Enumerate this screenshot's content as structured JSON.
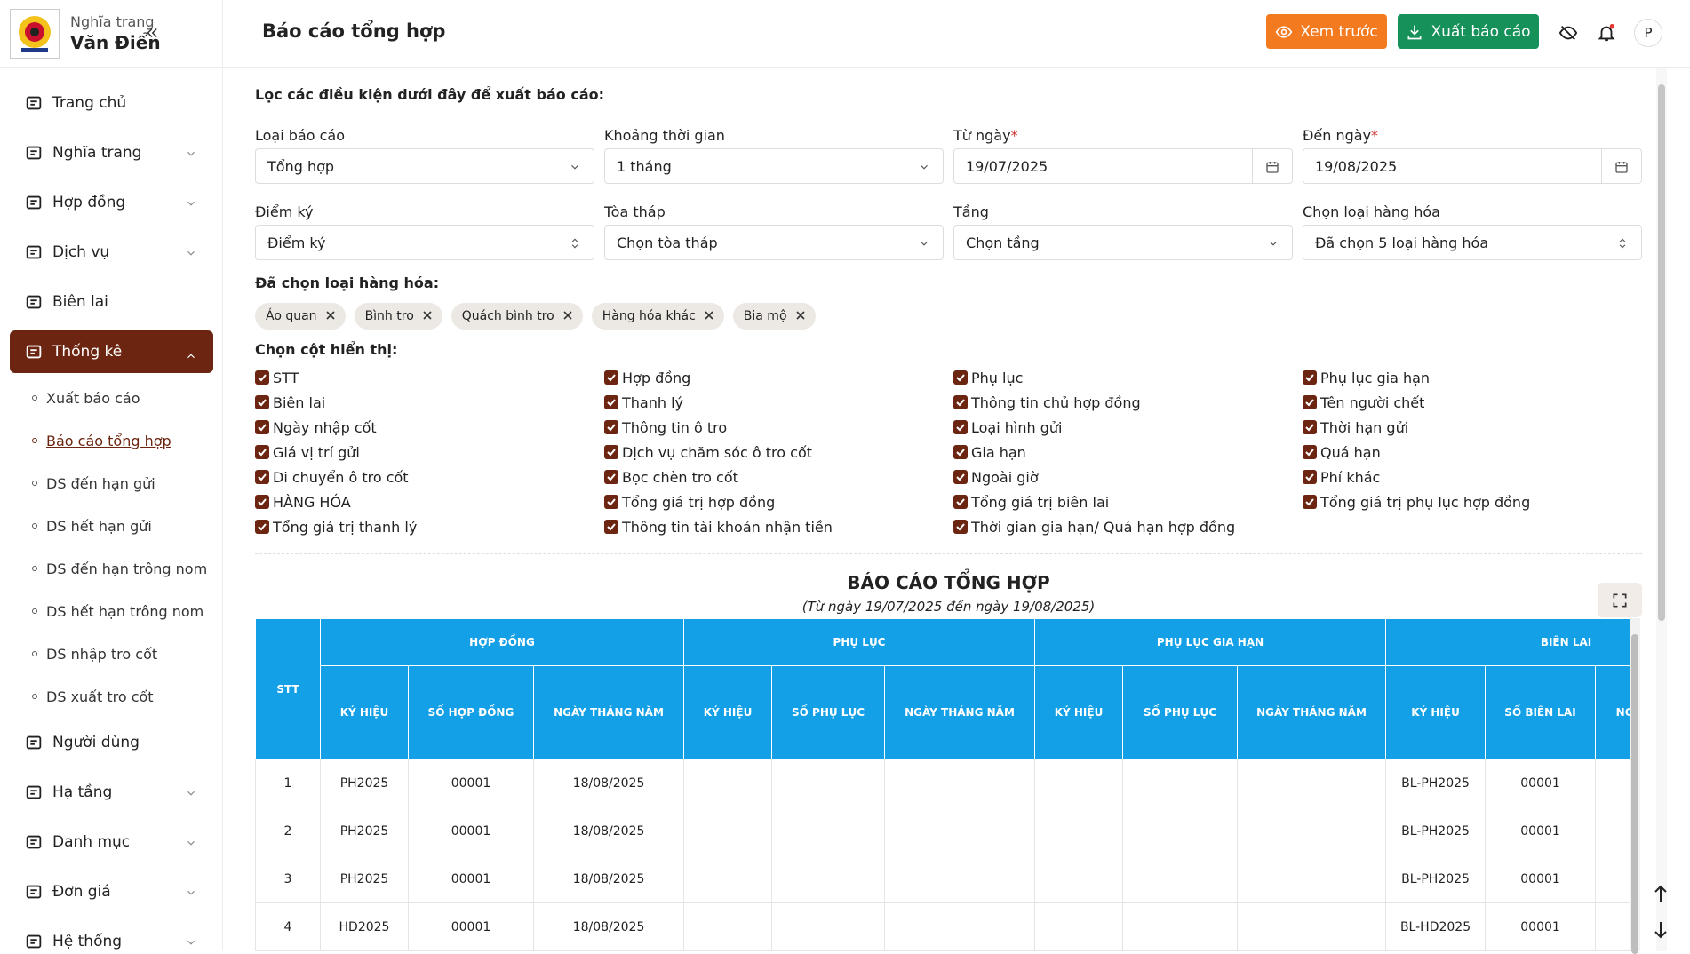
{
  "brand": {
    "line1": "Nghĩa trang",
    "line2": "Văn Điển"
  },
  "sidebar": {
    "menu": [
      {
        "label": "Trang chủ"
      },
      {
        "label": "Nghĩa trang",
        "collapsible": true
      },
      {
        "label": "Hợp đồng",
        "collapsible": true
      },
      {
        "label": "Dịch vụ",
        "collapsible": true
      },
      {
        "label": "Biên lai"
      },
      {
        "label": "Thống kê",
        "collapsible": true,
        "active": true,
        "current_submenu": 1,
        "submenu": [
          "Xuất báo cáo",
          "Báo cáo tổng hợp",
          "DS đến hạn gửi",
          "DS hết hạn gửi",
          "DS đến hạn trông nom",
          "DS hết hạn trông nom",
          "DS nhập tro cốt",
          "DS xuất tro cốt"
        ]
      },
      {
        "label": "Người dùng"
      },
      {
        "label": "Hạ tầng",
        "collapsible": true
      },
      {
        "label": "Danh mục",
        "collapsible": true
      },
      {
        "label": "Đơn giá",
        "collapsible": true
      },
      {
        "label": "Hệ thống",
        "collapsible": true
      }
    ]
  },
  "header": {
    "title": "Báo cáo tổng hợp",
    "preview": "Xem trước",
    "export": "Xuất báo cáo",
    "avatar": "P"
  },
  "filters": {
    "heading": "Lọc các điều kiện dưới đây để xuất báo cáo:",
    "fields": [
      {
        "label": "Loại báo cáo",
        "value": "Tổng hợp",
        "control": "select"
      },
      {
        "label": "Khoảng thời gian",
        "value": "1 tháng",
        "control": "select"
      },
      {
        "label": "Từ ngày",
        "required": "*",
        "value": "19/07/2025",
        "control": "date"
      },
      {
        "label": "Đến ngày",
        "required": "*",
        "value": "19/08/2025",
        "control": "date"
      },
      {
        "label": "Điểm ký",
        "value": "Điểm ký",
        "control": "sort"
      },
      {
        "label": "Tòa tháp",
        "value": "Chọn tòa tháp",
        "control": "select"
      },
      {
        "label": "Tầng",
        "value": "Chọn tầng",
        "control": "select"
      },
      {
        "label": "Chọn loại hàng hóa",
        "value": "Đã chọn 5 loại hàng hóa",
        "control": "sort"
      }
    ]
  },
  "selected_goods": {
    "label": "Đã chọn loại hàng hóa:",
    "tags": [
      "Áo quan",
      "Bình tro",
      "Quách bình tro",
      "Hàng hóa khác",
      "Bia mộ"
    ]
  },
  "columns": {
    "label": "Chọn cột hiển thị:",
    "items": [
      "STT",
      "Hợp đồng",
      "Phụ lục",
      "Phụ lục gia hạn",
      "Biên lai",
      "Thanh lý",
      "Thông tin chủ hợp đồng",
      "Tên người chết",
      "Ngày nhập cốt",
      "Thông tin ô tro",
      "Loại hình gửi",
      "Thời hạn gửi",
      "Giá vị trí gửi",
      "Dịch vụ chăm sóc ô tro cốt",
      "Gia hạn",
      "Quá hạn",
      "Di chuyển ô tro cốt",
      "Bọc chèn tro cốt",
      "Ngoài giờ",
      "Phí khác",
      "HÀNG HÓA",
      "Tổng giá trị hợp đồng",
      "Tổng giá trị biên lai",
      "Tổng giá trị phụ lục hợp đồng",
      "Tổng giá trị thanh lý",
      "Thông tin tài khoản nhận tiền",
      "Thời gian gia hạn/ Quá hạn hợp đồng"
    ]
  },
  "report": {
    "title": "BÁO CÁO TỔNG HỢP",
    "subtitle": "(Từ ngày 19/07/2025 đến ngày 19/08/2025)",
    "stt": "STT",
    "groups": [
      {
        "name": "HỢP ĐỒNG",
        "columns": [
          "KÝ HIỆU",
          "SỐ HỢP ĐỒNG",
          "NGÀY THÁNG NĂM"
        ]
      },
      {
        "name": "PHỤ LỤC",
        "columns": [
          "KÝ HIỆU",
          "SỐ PHỤ LỤC",
          "NGÀY THÁNG NĂM"
        ]
      },
      {
        "name": "PHỤ LỤC GIA HẠN",
        "columns": [
          "KÝ HIỆU",
          "SỐ PHỤ LỤC",
          "NGÀY THÁNG NĂM"
        ]
      },
      {
        "name": "BIÊN LAI",
        "columns": [
          "KÝ HIỆU",
          "SỐ BIÊN LAI",
          "NGÀY THÁNG NĂM"
        ]
      }
    ],
    "rows": [
      [
        1,
        "PH2025",
        "00001",
        "18/08/2025",
        null,
        null,
        null,
        null,
        null,
        null,
        "BL-PH2025",
        "00001",
        null
      ],
      [
        2,
        "PH2025",
        "00001",
        "18/08/2025",
        null,
        null,
        null,
        null,
        null,
        null,
        "BL-PH2025",
        "00001",
        null
      ],
      [
        3,
        "PH2025",
        "00001",
        "18/08/2025",
        null,
        null,
        null,
        null,
        null,
        null,
        "BL-PH2025",
        "00001",
        null
      ],
      [
        4,
        "HD2025",
        "00001",
        "18/08/2025",
        null,
        null,
        null,
        null,
        null,
        null,
        "BL-HD2025",
        "00001",
        null
      ]
    ]
  }
}
